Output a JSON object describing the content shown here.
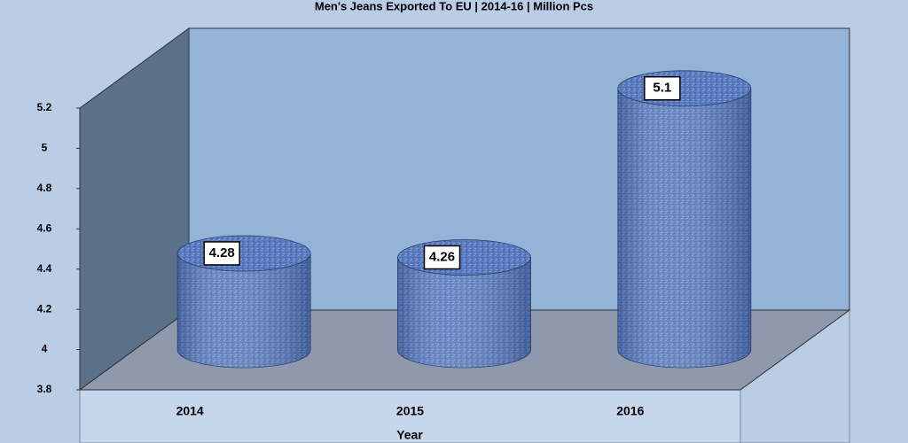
{
  "chart_data": {
    "type": "bar",
    "title": "Men's Jeans Exported To EU | 2014-16 | Million Pcs",
    "x_label": "Year",
    "categories": [
      "2014",
      "2015",
      "2016"
    ],
    "values": [
      4.28,
      4.26,
      5.1
    ],
    "color": "#5b7cc0",
    "ylim": [
      3.8,
      5.2
    ],
    "yticks": [
      3.8,
      4,
      4.2,
      4.4,
      4.6,
      4.8,
      5,
      5.2
    ],
    "grid": false
  }
}
